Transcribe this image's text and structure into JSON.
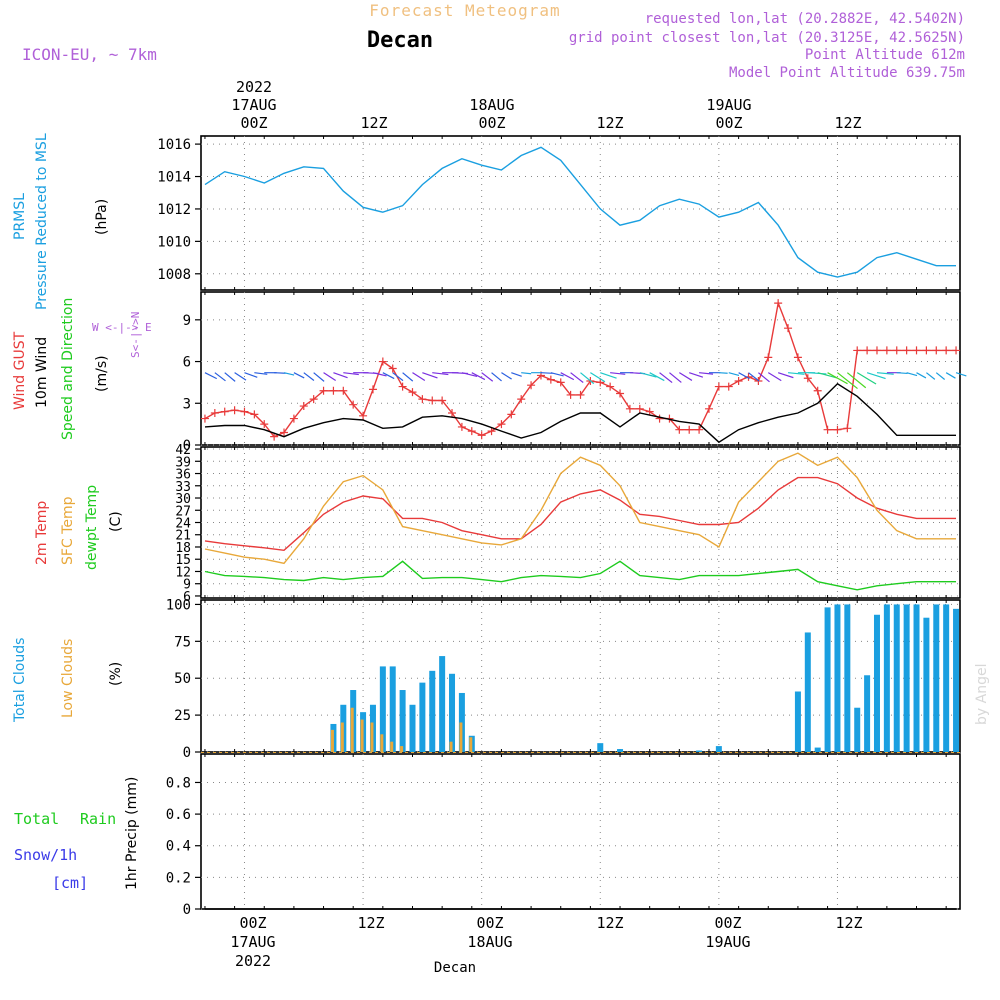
{
  "header": {
    "title_top": "Forecast Meteogram",
    "location": "Decan",
    "model": "ICON-EU, ~ 7km",
    "requested": "requested lon,lat (20.2882E, 42.5402N)",
    "grid_point": "grid point closest lon,lat (20.3125E, 42.5625N)",
    "point_alt": "Point Altitude 612m",
    "model_alt": "Model Point Altitude 639.75m",
    "credit": "by Angel"
  },
  "time_axis": {
    "top_year": "2022",
    "top_labels": [
      "17AUG",
      "00Z",
      "12Z",
      "18AUG",
      "00Z",
      "12Z",
      "19AUG",
      "00Z",
      "12Z"
    ],
    "bottom_labels": [
      "00Z",
      "12Z",
      "00Z",
      "12Z",
      "00Z",
      "12Z"
    ],
    "bottom_dates": [
      "17AUG",
      "18AUG",
      "19AUG"
    ],
    "bottom_year": "2022",
    "bottom_location": "Decan"
  },
  "panel_labels": {
    "pressure": {
      "line1": "PRMSL",
      "line2": "Pressure Reduced to MSL",
      "unit": "(hPa)"
    },
    "wind": {
      "gust": "Wind GUST",
      "wind10": "10m Wind",
      "speed_dir": "Speed and Direction",
      "unit": "(m/s)",
      "compass": "W <-|-> E",
      "compass_v": "S<-|->N"
    },
    "temp": {
      "t2m": "2m Temp",
      "sfc": "SFC Temp",
      "dewpt": "dewpt Temp",
      "unit": "(C)"
    },
    "clouds": {
      "total": "Total Clouds",
      "low": "Low Clouds",
      "unit": "(%)"
    },
    "precip": {
      "total": "Total",
      "rain": "Rain",
      "snow": "Snow/1h",
      "snow_unit": "[cm]",
      "axis": "1hr Precip (mm)"
    }
  },
  "colors": {
    "pressure": "#1a9fe0",
    "gust": "#e83a3a",
    "wind": "#000000",
    "t2m": "#e83a3a",
    "sfc": "#e8a83a",
    "dewpt": "#1ecb1e",
    "total_clouds": "#1a9fe0",
    "low_clouds": "#e8a83a",
    "header_purple": "#b060d8",
    "title_orange": "#f0c080",
    "rain": "#1ecb1e",
    "snow": "#3a3ae8"
  },
  "chart_data": [
    {
      "type": "line",
      "name": "pressure",
      "x_unit": "hours from 17AUG 00Z",
      "ylim": [
        1007,
        1016.5
      ],
      "yticks": [
        "1008",
        "1010",
        "1012",
        "1014",
        "1016"
      ],
      "series": [
        {
          "name": "PRMSL",
          "color": "#1a9fe0",
          "x": [
            -4,
            -2,
            0,
            2,
            4,
            6,
            8,
            10,
            12,
            14,
            16,
            18,
            20,
            22,
            24,
            26,
            28,
            30,
            32,
            34,
            36,
            38,
            40,
            42,
            44,
            46,
            48,
            50,
            52,
            54,
            56,
            58,
            60,
            62,
            64,
            66,
            68,
            70,
            72
          ],
          "values": [
            1013.5,
            1014.3,
            1014.0,
            1013.6,
            1014.2,
            1014.6,
            1014.5,
            1013.1,
            1012.1,
            1011.8,
            1012.2,
            1013.5,
            1014.5,
            1015.1,
            1014.7,
            1014.4,
            1015.3,
            1015.8,
            1015.0,
            1013.5,
            1012.0,
            1011.0,
            1011.3,
            1012.2,
            1012.6,
            1012.3,
            1011.5,
            1011.8,
            1012.4,
            1011.0,
            1009.0,
            1008.1,
            1007.8,
            1008.1,
            1009.0,
            1009.3,
            1008.9,
            1008.5,
            1008.5
          ]
        }
      ]
    },
    {
      "type": "line",
      "name": "wind",
      "x_unit": "hours from 17AUG 00Z",
      "ylim": [
        0,
        11
      ],
      "yticks": [
        "0",
        "3",
        "6",
        "9"
      ],
      "series": [
        {
          "name": "Wind GUST",
          "color": "#e83a3a",
          "x": [
            -4,
            -3,
            -2,
            -1,
            0,
            1,
            2,
            3,
            4,
            5,
            6,
            7,
            8,
            9,
            10,
            11,
            12,
            13,
            14,
            15,
            16,
            17,
            18,
            19,
            20,
            21,
            22,
            23,
            24,
            25,
            26,
            27,
            28,
            29,
            30,
            31,
            32,
            33,
            34,
            35,
            36,
            37,
            38,
            39,
            40,
            41,
            42,
            43,
            44,
            45,
            46,
            47,
            48,
            49,
            50,
            51,
            52,
            53,
            54,
            55,
            56,
            57,
            58,
            59,
            60,
            61,
            62,
            63,
            64,
            65,
            66,
            67,
            68,
            69,
            70,
            71,
            72
          ],
          "values": [
            1.9,
            2.3,
            2.4,
            2.5,
            2.4,
            2.2,
            1.5,
            0.6,
            0.9,
            1.9,
            2.8,
            3.3,
            3.9,
            3.9,
            3.9,
            2.9,
            2.1,
            4.0,
            6.0,
            5.5,
            4.2,
            3.8,
            3.3,
            3.2,
            3.2,
            2.3,
            1.3,
            1.0,
            0.7,
            1.0,
            1.5,
            2.2,
            3.3,
            4.3,
            5.0,
            4.7,
            4.5,
            3.6,
            3.6,
            4.6,
            4.5,
            4.2,
            3.7,
            2.6,
            2.6,
            2.4,
            1.9,
            1.9,
            1.1,
            1.1,
            1.1,
            2.6,
            4.2,
            4.2,
            4.6,
            4.9,
            4.6,
            6.3,
            10.2,
            8.4,
            6.3,
            4.8,
            3.9,
            1.1,
            1.1,
            1.2,
            6.8,
            6.8,
            6.8,
            6.8,
            6.8,
            6.8,
            6.8,
            6.8,
            6.8,
            6.8,
            6.8
          ]
        },
        {
          "name": "10m Wind",
          "color": "#000000",
          "x": [
            -4,
            -2,
            0,
            2,
            4,
            6,
            8,
            10,
            12,
            14,
            16,
            18,
            20,
            22,
            24,
            26,
            28,
            30,
            32,
            34,
            36,
            38,
            40,
            42,
            44,
            46,
            48,
            50,
            52,
            54,
            56,
            58,
            60,
            62,
            64,
            66,
            68,
            70,
            72
          ],
          "values": [
            1.3,
            1.4,
            1.4,
            1.1,
            0.6,
            1.2,
            1.6,
            1.9,
            1.8,
            1.2,
            1.3,
            2.0,
            2.1,
            1.9,
            1.5,
            1.0,
            0.5,
            0.9,
            1.7,
            2.3,
            2.3,
            1.3,
            2.3,
            2.0,
            1.7,
            1.5,
            0.2,
            1.1,
            1.6,
            2.0,
            2.3,
            3.0,
            4.4,
            3.5,
            2.2,
            0.7,
            0.7,
            0.7,
            0.7
          ]
        }
      ]
    },
    {
      "type": "line",
      "name": "temperature",
      "x_unit": "hours from 17AUG 00Z",
      "ylim": [
        5.5,
        42.5
      ],
      "yticks": [
        "6",
        "9",
        "12",
        "15",
        "18",
        "21",
        "24",
        "27",
        "30",
        "33",
        "36",
        "39",
        "42"
      ],
      "series": [
        {
          "name": "2m Temp",
          "color": "#e83a3a",
          "x": [
            -4,
            -2,
            0,
            2,
            4,
            6,
            8,
            10,
            12,
            14,
            16,
            18,
            20,
            22,
            24,
            26,
            28,
            30,
            32,
            34,
            36,
            38,
            40,
            42,
            44,
            46,
            48,
            50,
            52,
            54,
            56,
            58,
            60,
            62,
            64,
            66,
            68,
            70,
            72
          ],
          "values": [
            19.5,
            18.8,
            18.3,
            17.8,
            17.2,
            21.5,
            26.0,
            29.0,
            30.5,
            29.8,
            25.0,
            25.0,
            24.0,
            22.0,
            21.0,
            20.0,
            20.0,
            23.5,
            29.0,
            31.0,
            32.0,
            29.5,
            26.0,
            25.5,
            24.5,
            23.5,
            23.5,
            24.0,
            27.5,
            32.0,
            35.0,
            35.0,
            33.5,
            30.0,
            27.5,
            26.0,
            25.0,
            25.0,
            25.0
          ]
        },
        {
          "name": "SFC Temp",
          "color": "#e8a83a",
          "x": [
            -4,
            -2,
            0,
            2,
            4,
            6,
            8,
            10,
            12,
            14,
            16,
            18,
            20,
            22,
            24,
            26,
            28,
            30,
            32,
            34,
            36,
            38,
            40,
            42,
            44,
            46,
            48,
            50,
            52,
            54,
            56,
            58,
            60,
            62,
            64,
            66,
            68,
            70,
            72
          ],
          "values": [
            17.5,
            16.5,
            15.5,
            15.0,
            14.0,
            20.0,
            28.0,
            34.0,
            35.5,
            32.0,
            23.0,
            22.0,
            21.0,
            20.0,
            19.0,
            18.5,
            20.0,
            27.0,
            36.0,
            40.0,
            38.0,
            33.0,
            24.0,
            23.0,
            22.0,
            21.0,
            18.0,
            29.0,
            34.0,
            39.0,
            41.0,
            38.0,
            40.0,
            35.0,
            27.0,
            22.0,
            20.0,
            20.0,
            20.0
          ]
        },
        {
          "name": "dewpt Temp",
          "color": "#1ecb1e",
          "x": [
            -4,
            -2,
            0,
            2,
            4,
            6,
            8,
            10,
            12,
            14,
            16,
            18,
            20,
            22,
            24,
            26,
            28,
            30,
            32,
            34,
            36,
            38,
            40,
            42,
            44,
            46,
            48,
            50,
            52,
            54,
            56,
            58,
            60,
            62,
            64,
            66,
            68,
            70,
            72
          ],
          "values": [
            12.0,
            11.0,
            10.8,
            10.5,
            10.0,
            9.8,
            10.5,
            10.0,
            10.5,
            10.8,
            14.5,
            10.3,
            10.5,
            10.5,
            10.0,
            9.5,
            10.5,
            11.0,
            10.8,
            10.5,
            11.5,
            14.5,
            11.0,
            10.5,
            10.0,
            11.0,
            11.0,
            11.0,
            11.5,
            12.0,
            12.5,
            9.5,
            8.5,
            7.5,
            8.5,
            9.0,
            9.5,
            9.5,
            9.5
          ]
        }
      ]
    },
    {
      "type": "bar",
      "name": "clouds",
      "x_unit": "hours from 17AUG 00Z",
      "ylim": [
        0,
        103
      ],
      "yticks": [
        "0",
        "25",
        "50",
        "75",
        "100"
      ],
      "series": [
        {
          "name": "Total Clouds",
          "color": "#1a9fe0",
          "x": [
            9,
            10,
            11,
            12,
            13,
            14,
            15,
            16,
            17,
            18,
            19,
            20,
            21,
            22,
            23,
            24,
            36,
            38,
            46,
            48,
            56,
            57,
            58,
            59,
            60,
            61,
            62,
            63,
            64,
            65,
            66,
            67,
            68,
            69,
            70,
            71,
            72
          ],
          "values": [
            19,
            32,
            42,
            27,
            32,
            58,
            58,
            42,
            32,
            47,
            55,
            65,
            53,
            40,
            11,
            0,
            6,
            2,
            1,
            4,
            41,
            81,
            3,
            98,
            100,
            100,
            30,
            52,
            93,
            100,
            100,
            100,
            100,
            91,
            100,
            100,
            97
          ]
        },
        {
          "name": "Low Clouds",
          "color": "#e8a83a",
          "x": [
            9,
            10,
            11,
            12,
            13,
            14,
            15,
            16,
            17,
            18,
            19,
            20,
            21,
            22,
            23
          ],
          "values": [
            15,
            20,
            30,
            22,
            20,
            12,
            7,
            4,
            0,
            0,
            0,
            0,
            7,
            20,
            10
          ]
        }
      ]
    },
    {
      "type": "line",
      "name": "precipitation",
      "x_unit": "hours from 17AUG 00Z",
      "ylim": [
        0,
        0.98
      ],
      "yticks": [
        "0",
        "0.2",
        "0.4",
        "0.6",
        "0.8"
      ],
      "series": [
        {
          "name": "Total",
          "color": "#000000",
          "x": [
            -4,
            72
          ],
          "values": [
            0,
            0
          ]
        }
      ]
    }
  ]
}
